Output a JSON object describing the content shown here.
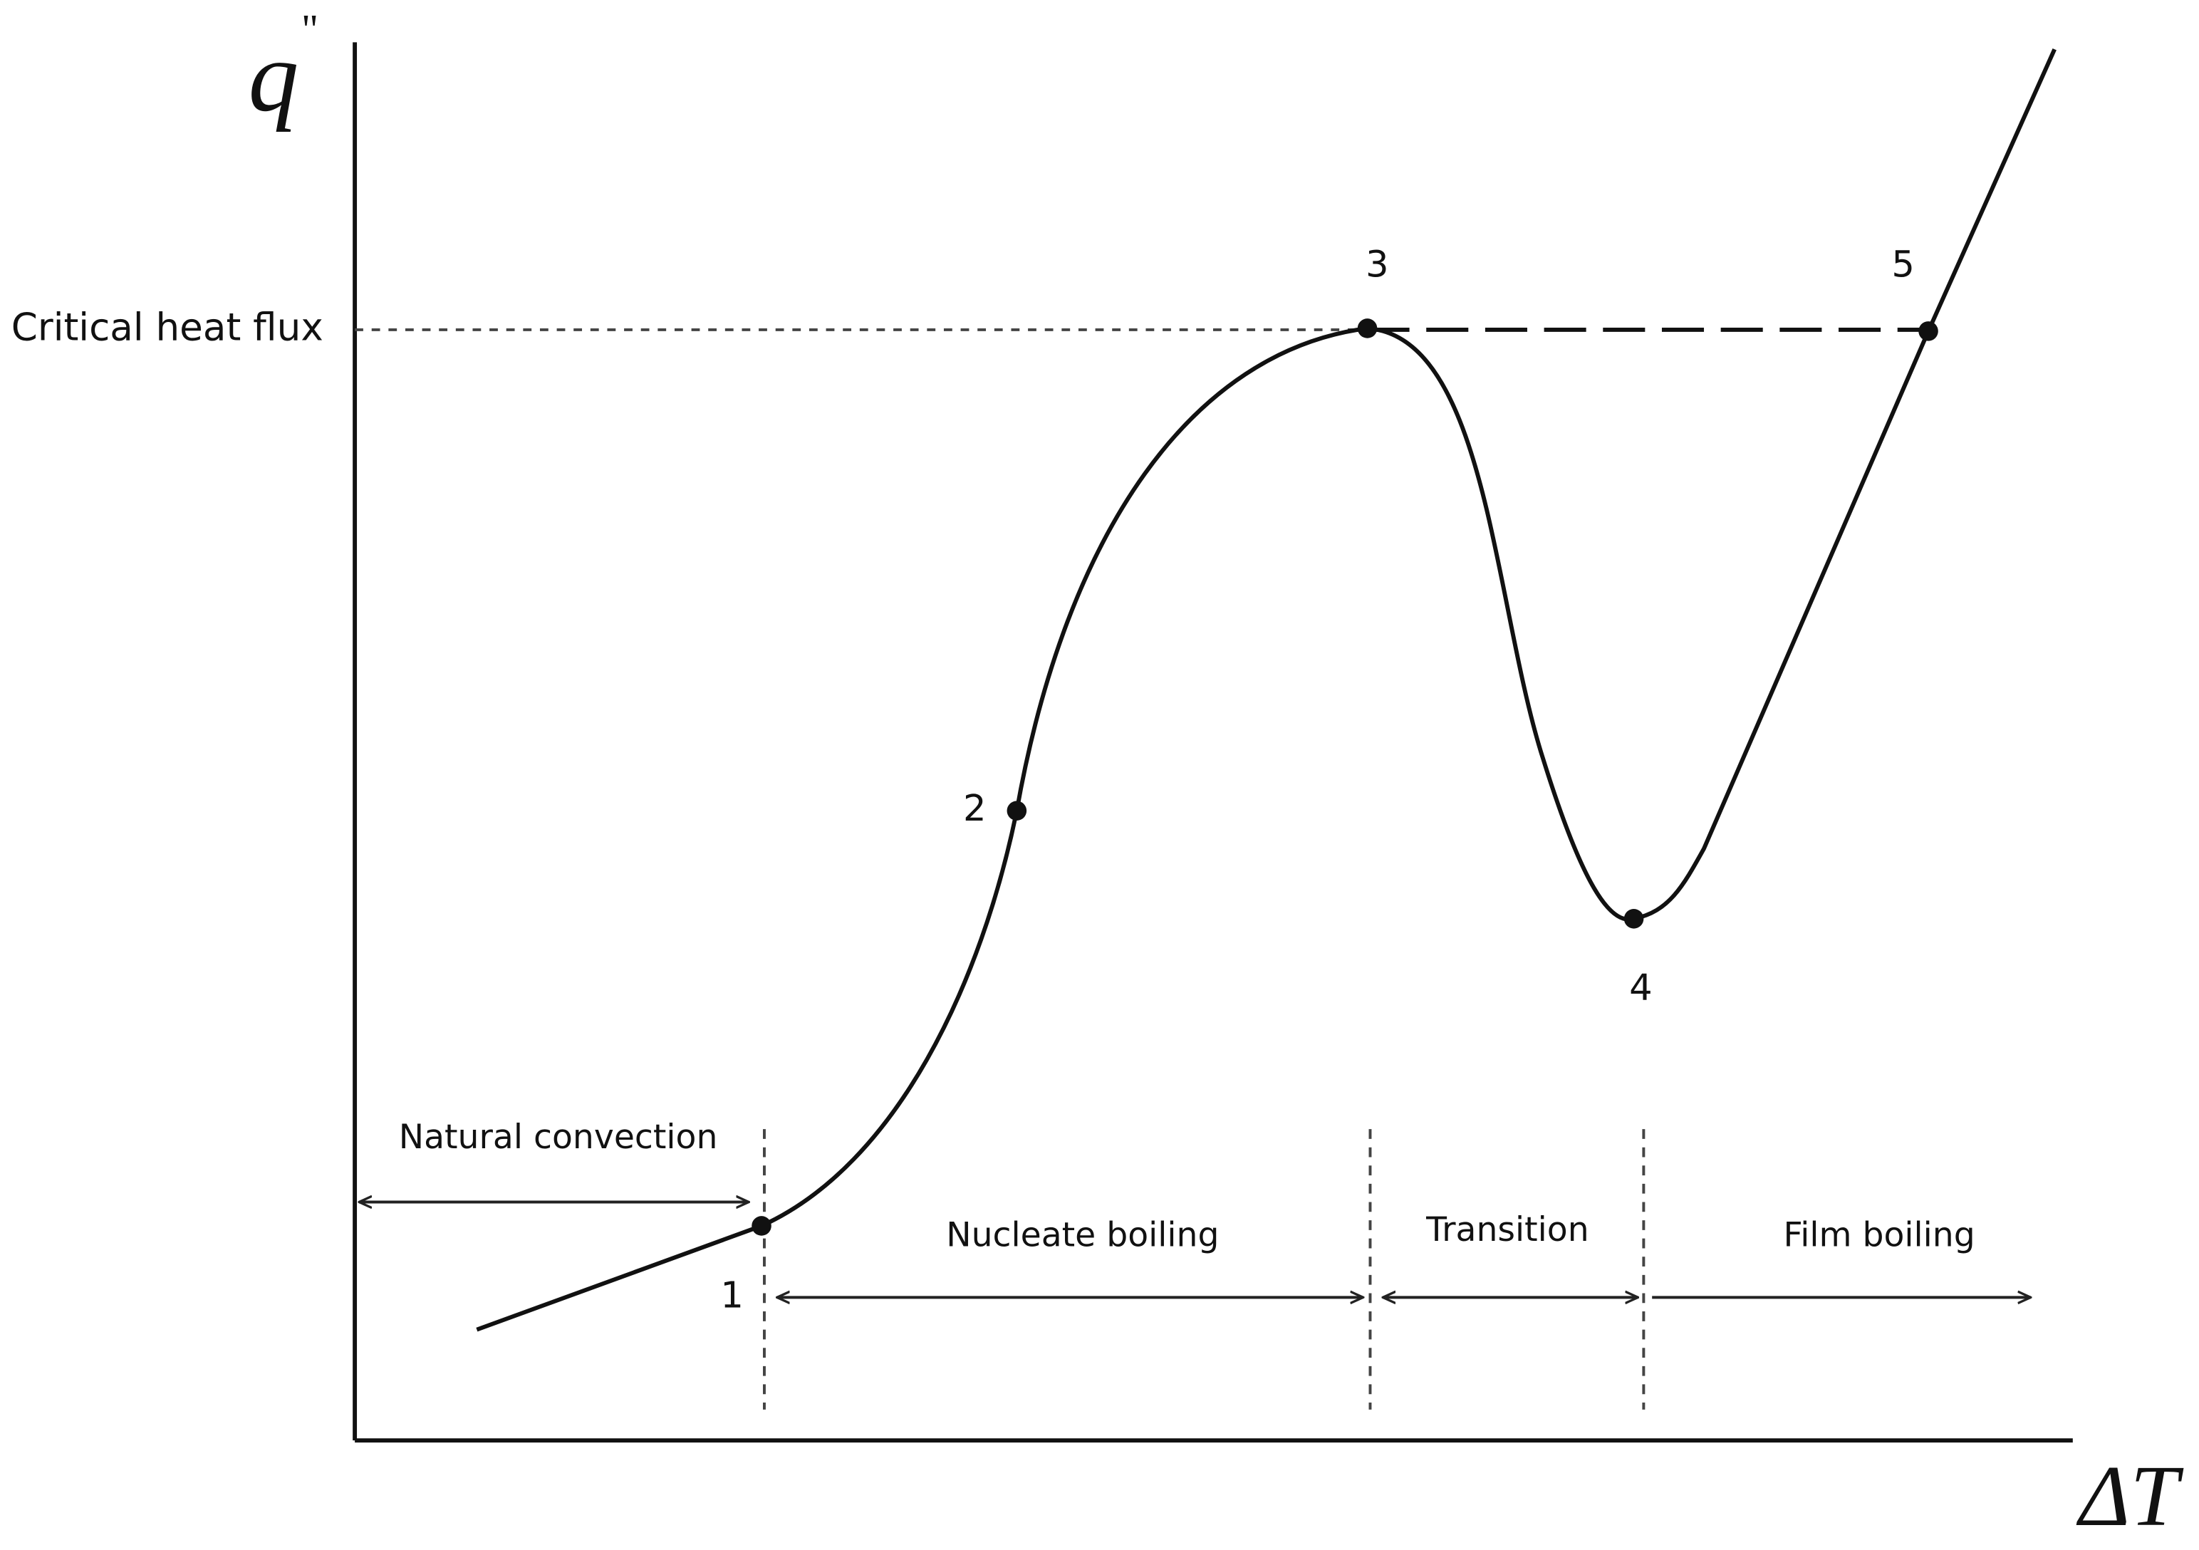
{
  "axes": {
    "y_label": "q",
    "y_label_mark": "\"",
    "x_label": "ΔT"
  },
  "critical_heat_flux_label": "Critical heat flux",
  "points": [
    {
      "label": "1"
    },
    {
      "label": "2"
    },
    {
      "label": "3"
    },
    {
      "label": "4"
    },
    {
      "label": "5"
    }
  ],
  "regions": [
    {
      "label": "Natural convection"
    },
    {
      "label": "Nucleate boiling"
    },
    {
      "label": "Transition"
    },
    {
      "label": "Film boiling"
    }
  ]
}
